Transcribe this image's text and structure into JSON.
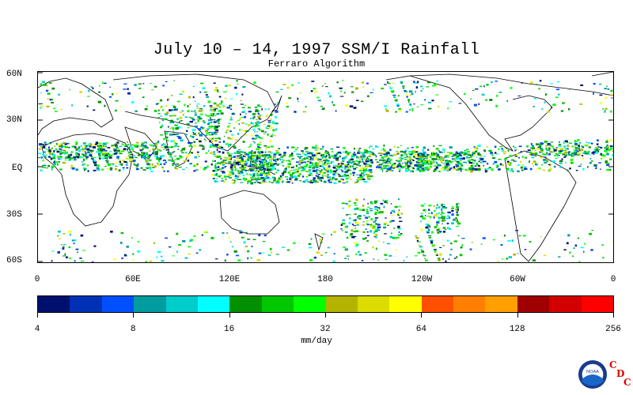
{
  "title": "July 10 – 14, 1997 SSM/I Rainfall",
  "subtitle": "Ferraro Algorithm",
  "map": {
    "lat_labels": [
      "60N",
      "30N",
      "EQ",
      "30S",
      "60S"
    ],
    "lon_labels": [
      "0",
      "60E",
      "120E",
      "180",
      "120W",
      "60W",
      "0"
    ]
  },
  "colorbar": {
    "colors": [
      "#00106e",
      "#0030b4",
      "#0050ff",
      "#009ca0",
      "#00cccc",
      "#00ffff",
      "#009000",
      "#00c800",
      "#00ff00",
      "#b4b400",
      "#dcdc00",
      "#ffff00",
      "#ff5000",
      "#ff8000",
      "#ffa000",
      "#a00000",
      "#d20000",
      "#ff0000"
    ],
    "tick_labels": [
      "4",
      "8",
      "16",
      "32",
      "64",
      "128",
      "256"
    ],
    "units": "mm/day"
  },
  "logo": {
    "icon": "noaa-logo-icon",
    "text": "NOAA",
    "cdc_letters": [
      "C",
      "D",
      "C"
    ]
  }
}
